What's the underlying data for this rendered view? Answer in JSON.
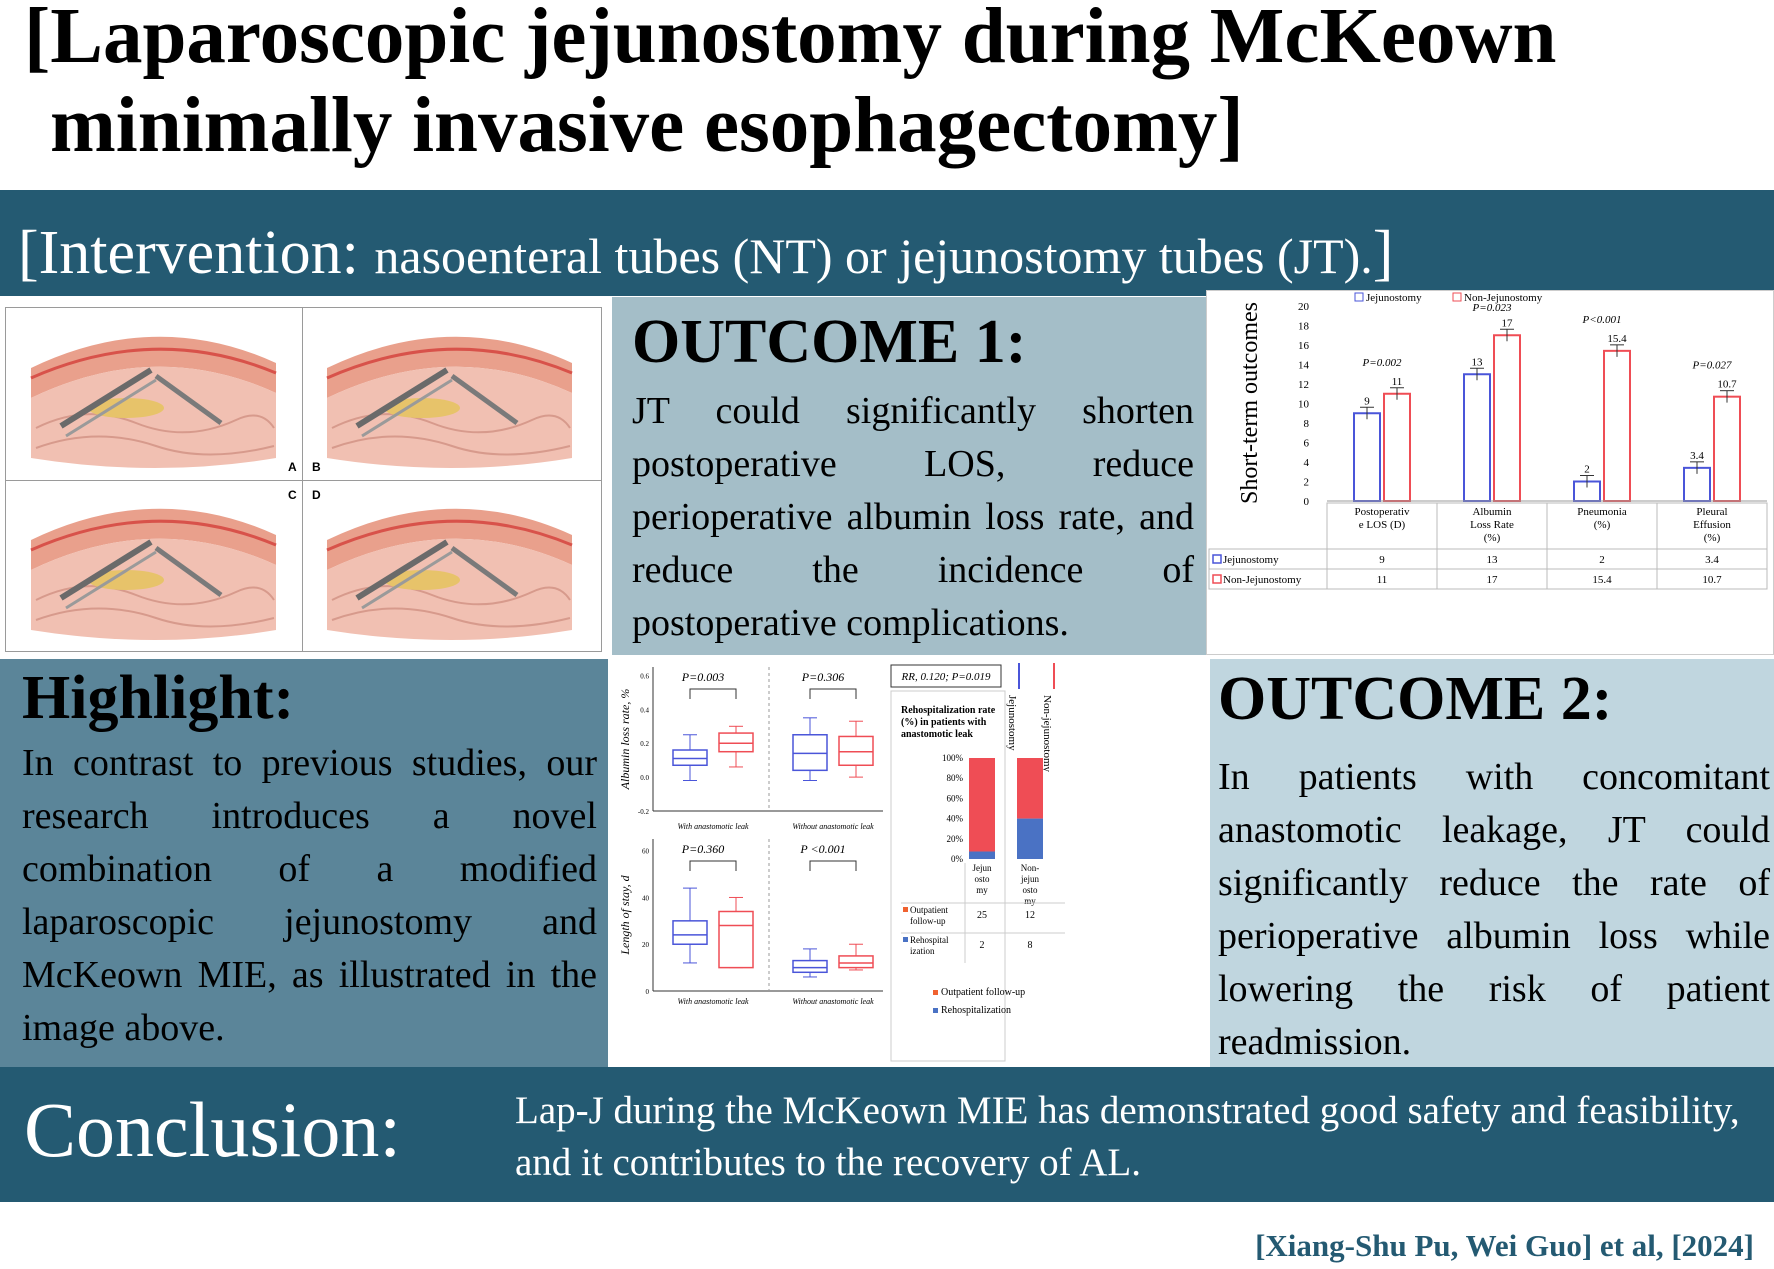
{
  "title": {
    "line1": "[Laparoscopic jejunostomy during McKeown",
    "line2": "minimally invasive esophagectomy]"
  },
  "intervention": {
    "lead": "[Intervention: ",
    "rest": "nasoenteral tubes (NT) or jejunostomy tubes (JT).",
    "close": "]"
  },
  "illustration": {
    "labels": [
      "A",
      "B",
      "C",
      "D"
    ]
  },
  "outcome1": {
    "heading": "OUTCOME 1:",
    "body": "JT could significantly shorten postoperative LOS, reduce perioperative albumin loss rate, and reduce the incidence of postoperative complications."
  },
  "highlight": {
    "heading": "Highlight:",
    "body": "In contrast to previous studies, our research introduces a novel combination of a modified laparoscopic jejunostomy and McKeown MIE, as illustrated in the image above."
  },
  "outcome2": {
    "heading": "OUTCOME 2:",
    "body": "In patients with concomitant anastomotic leakage, JT could significantly reduce the rate of perioperative albumin loss while lowering the risk of patient readmission."
  },
  "conclusion": {
    "heading": "Conclusion:",
    "body": "Lap-J during the McKeown MIE has demonstrated good safety and feasibility, and it contributes to the recovery of AL."
  },
  "citation": "[Xiang-Shu Pu, Wei Guo] et al, [2024]",
  "colors": {
    "band": "#245a72",
    "jejunostomy": "#4a55d9",
    "nonJejunostomy": "#ef4d55",
    "outpatient": "#f06230",
    "rehosp": "#4a72c4"
  },
  "chart_data": [
    {
      "type": "bar",
      "ylabel": "Short-term outcomes",
      "ylim": [
        0,
        20
      ],
      "yticks": [
        "0",
        "2",
        "4",
        "6",
        "8",
        "10",
        "12",
        "14",
        "16",
        "18",
        "20"
      ],
      "categories": [
        [
          "Postoperativ",
          "e LOS (D)"
        ],
        [
          "Albumin",
          "Loss Rate",
          "(%)"
        ],
        [
          "Pneumonia",
          "(%)"
        ],
        [
          "Pleural",
          "Effusion",
          "(%)"
        ]
      ],
      "pvalues": [
        "P=0.002",
        "P=0.023",
        "P<0.001",
        "P=0.027"
      ],
      "series": [
        {
          "name": "Jejunostomy",
          "values": [
            9,
            13,
            2,
            3.4
          ],
          "labels": [
            "9",
            "13",
            "2",
            "3.4"
          ]
        },
        {
          "name": "Non-Jejunostomy",
          "values": [
            11,
            17,
            15.4,
            10.7
          ],
          "labels": [
            "11",
            "17",
            "15.4",
            "10.7"
          ]
        }
      ]
    },
    {
      "type": "boxplot",
      "ylabel": "Albumin loss rate, %",
      "yticks": [
        "-0.2",
        "0.0",
        "0.2",
        "0.4",
        "0.6"
      ],
      "panels": [
        {
          "label": "With anastomotic leak",
          "p": "P=0.003",
          "boxes": [
            {
              "series": "Jejunostomy",
              "min": -0.02,
              "q1": 0.07,
              "median": 0.11,
              "q3": 0.16,
              "max": 0.25
            },
            {
              "series": "Non-jejunostomy",
              "min": 0.06,
              "q1": 0.15,
              "median": 0.2,
              "q3": 0.26,
              "max": 0.3
            }
          ]
        },
        {
          "label": "Without anastomotic leak",
          "p": "P=0.306",
          "boxes": [
            {
              "series": "Jejunostomy",
              "min": -0.02,
              "q1": 0.04,
              "median": 0.14,
              "q3": 0.25,
              "max": 0.35
            },
            {
              "series": "Non-jejunostomy",
              "min": 0.0,
              "q1": 0.07,
              "median": 0.15,
              "q3": 0.24,
              "max": 0.33
            }
          ]
        }
      ]
    },
    {
      "type": "boxplot",
      "ylabel": "Length of stay, d",
      "yticks": [
        "0",
        "20",
        "40",
        "60"
      ],
      "panels": [
        {
          "label": "With anastomotic leak",
          "p": "P=0.360",
          "boxes": [
            {
              "series": "Jejunostomy",
              "min": 12,
              "q1": 20,
              "median": 24,
              "q3": 30,
              "max": 44
            },
            {
              "series": "Non-jejunostomy",
              "min": 10,
              "q1": 10,
              "median": 28,
              "q3": 34,
              "max": 40
            }
          ]
        },
        {
          "label": "Without anastomotic leak",
          "p": "P <0.001",
          "boxes": [
            {
              "series": "Jejunostomy",
              "min": 6,
              "q1": 8,
              "median": 10,
              "q3": 13,
              "max": 18
            },
            {
              "series": "Non-jejunostomy",
              "min": 9,
              "q1": 10,
              "median": 12,
              "q3": 15,
              "max": 20
            }
          ]
        }
      ],
      "legend": [
        "Jejunostomy",
        "Non-jejunostomy"
      ]
    },
    {
      "type": "bar",
      "stacked": true,
      "note": "RR, 0.120; P=0.019",
      "title": "Rehospitalization rate (%) in patients with anastomotic leak",
      "yticks": [
        "0%",
        "20%",
        "40%",
        "60%",
        "80%",
        "100%"
      ],
      "categories": [
        [
          "Jejun",
          "osto",
          "my"
        ],
        [
          "Non-",
          "jejun",
          "osto",
          "my"
        ]
      ],
      "series": [
        {
          "name": "Outpatient follow-up",
          "rowLabel": [
            "Outpatient",
            "follow-up"
          ],
          "values": [
            25,
            12
          ]
        },
        {
          "name": "Rehospitalization",
          "rowLabel": [
            "Rehospital",
            "ization"
          ],
          "values": [
            2,
            8
          ]
        }
      ]
    }
  ]
}
